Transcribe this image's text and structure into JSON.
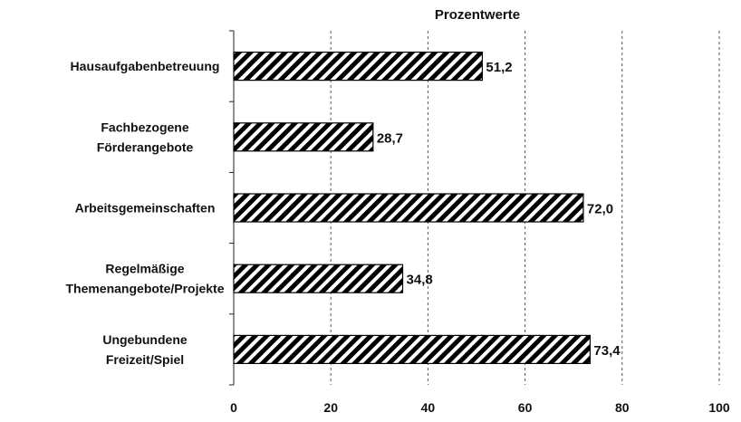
{
  "chart_data": {
    "type": "bar",
    "orientation": "horizontal",
    "title": "Prozentwerte",
    "xlim": [
      0,
      100
    ],
    "xticks": [
      0,
      20,
      40,
      60,
      80,
      100
    ],
    "grid": "vertical dashed",
    "categories": [
      [
        "Hausaufgabenbetreuung"
      ],
      [
        "Fachbezogene",
        "Förderangebote"
      ],
      [
        "Arbeitsgemeinschaften"
      ],
      [
        "Regelmäßige",
        "Themenangebote/Projekte"
      ],
      [
        "Ungebundene",
        "Freizeit/Spiel"
      ]
    ],
    "values": [
      51.2,
      28.7,
      72.0,
      34.8,
      73.4
    ],
    "value_labels": [
      "51,2",
      "28,7",
      "72,0",
      "34,8",
      "73,4"
    ],
    "bar_fill": "diagonal hatch",
    "colors": {
      "bar_stripe": "#000000",
      "bar_background": "#ffffff"
    }
  }
}
